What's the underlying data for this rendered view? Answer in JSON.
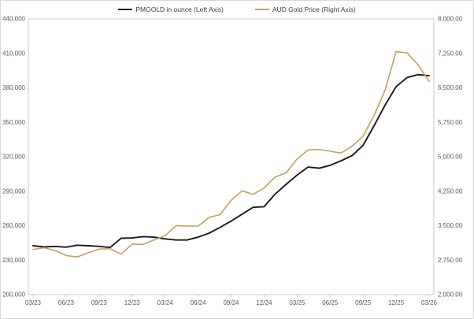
{
  "chart_data": {
    "type": "line",
    "title": "",
    "legend_position": "top",
    "grid": false,
    "x_tick_labels": [
      "03/23",
      "06/23",
      "09/23",
      "12/23",
      "03/24",
      "06/24",
      "09/24",
      "12/24",
      "03/25",
      "06/25",
      "09/25",
      "12/25",
      "03/26"
    ],
    "x_tick_every": 3,
    "x_monthly_labels": [
      "03/23",
      "04/23",
      "05/23",
      "06/23",
      "07/23",
      "08/23",
      "09/23",
      "10/23",
      "11/23",
      "12/23",
      "01/24",
      "02/24",
      "03/24",
      "04/24",
      "05/24",
      "06/24",
      "07/24",
      "08/24",
      "09/24",
      "10/24",
      "11/24",
      "12/24",
      "01/25",
      "02/25",
      "03/25",
      "04/25",
      "05/25",
      "06/25",
      "07/25",
      "08/25",
      "09/25",
      "10/25",
      "11/25",
      "12/25",
      "01/26",
      "02/26",
      "03/26"
    ],
    "left_axis": {
      "min": 200000,
      "max": 440000,
      "step": 30000,
      "tick_labels": [
        "200,000",
        "230,000",
        "260,000",
        "290,000",
        "320,000",
        "350,000",
        "380,000",
        "410,000",
        "440,000"
      ]
    },
    "right_axis": {
      "min": 2000,
      "max": 8000,
      "step": 750,
      "tick_labels": [
        "2,000.00",
        "2,750.00",
        "3,500.00",
        "4,250.00",
        "5,000.00",
        "5,750.00",
        "6,500.00",
        "7,250.00",
        "8,000.00"
      ]
    },
    "series": [
      {
        "name": "PMGOLD in ounce (Left Axis)",
        "axis": "left",
        "color": "#1c1c1c",
        "width": 1.9,
        "data_name": "pmgold-series-line",
        "values": [
          242500,
          241500,
          242000,
          241300,
          243000,
          242500,
          242000,
          241000,
          249000,
          249300,
          250500,
          250000,
          248500,
          247500,
          247500,
          250000,
          253500,
          258500,
          264000,
          270000,
          276000,
          276500,
          287500,
          296000,
          304000,
          311000,
          310000,
          312500,
          316500,
          321000,
          330000,
          347000,
          365000,
          381000,
          389000,
          391500,
          390500
        ]
      },
      {
        "name": "AUD Gold Price (Right Axis)",
        "axis": "right",
        "color": "#c5a059",
        "width": 1.6,
        "data_name": "aud-gold-series-line",
        "values": [
          2980,
          3020,
          2960,
          2850,
          2820,
          2910,
          2990,
          3000,
          2880,
          3100,
          3090,
          3190,
          3280,
          3500,
          3490,
          3490,
          3680,
          3740,
          4050,
          4260,
          4180,
          4320,
          4560,
          4650,
          4950,
          5150,
          5160,
          5120,
          5080,
          5230,
          5450,
          5900,
          6450,
          7290,
          7260,
          7000,
          6640
        ]
      }
    ],
    "axis_color": "#c9c9c9",
    "tick_text_color": "#595959"
  }
}
